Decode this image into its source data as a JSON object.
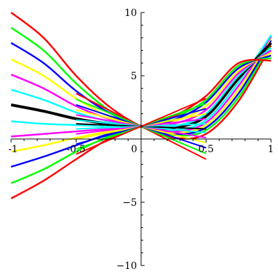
{
  "chart_data": {
    "type": "line",
    "title": "",
    "xlabel": "",
    "ylabel": "",
    "xlim": [
      -1,
      1
    ],
    "ylim": [
      -10,
      10
    ],
    "grid": false,
    "legend": "none",
    "x_ticks": [
      {
        "value": -1,
        "label": "-1"
      },
      {
        "value": -0.5,
        "label": "-0.5"
      },
      {
        "value": 0,
        "label": "0"
      },
      {
        "value": 0.5,
        "label": "0.5"
      },
      {
        "value": 1,
        "label": "1"
      }
    ],
    "y_ticks": [
      {
        "value": -10,
        "label": "−10"
      },
      {
        "value": -5,
        "label": "−5"
      },
      {
        "value": 5,
        "label": "5"
      },
      {
        "value": 10,
        "label": "10"
      }
    ],
    "curve_family": {
      "description_note": "",
      "x": [
        -1,
        -0.75,
        -0.5,
        -0.25,
        0,
        0.25,
        0.5,
        0.75,
        1
      ],
      "series": [
        {
          "color": "#ff0000",
          "values": [
            10.0,
            8.0,
            5.0,
            2.6,
            1.0,
            0.1,
            0.4,
            3.0,
            7.4
          ]
        },
        {
          "color": "#00ff00",
          "values": [
            8.8,
            7.0,
            4.4,
            2.3,
            1.0,
            0.3,
            0.7,
            3.3,
            7.6
          ]
        },
        {
          "color": "#0000ff",
          "values": [
            7.6,
            6.0,
            3.8,
            2.1,
            1.0,
            0.4,
            0.9,
            3.6,
            7.8
          ]
        },
        {
          "color": "#ffff00",
          "values": [
            6.3,
            5.0,
            3.2,
            1.8,
            1.0,
            0.5,
            1.1,
            3.9,
            8.0
          ]
        },
        {
          "color": "#ff00ff",
          "values": [
            5.1,
            4.0,
            2.6,
            1.6,
            1.0,
            0.6,
            1.3,
            4.2,
            8.1
          ]
        },
        {
          "color": "#00ffff",
          "values": [
            3.9,
            3.1,
            2.1,
            1.4,
            1.0,
            0.7,
            1.5,
            4.5,
            8.2
          ]
        },
        {
          "color": "#000000",
          "values": [
            2.7,
            2.2,
            1.6,
            1.2,
            1.0,
            0.9,
            1.8,
            4.8,
            7.6
          ],
          "bold": true
        },
        {
          "color": "#00ffff",
          "values": [
            1.4,
            1.2,
            1.1,
            1.0,
            1.0,
            1.0,
            2.0,
            5.0,
            7.2
          ]
        },
        {
          "color": "#ff00ff",
          "values": [
            0.2,
            0.4,
            0.6,
            0.8,
            1.0,
            1.2,
            2.3,
            5.2,
            7.0
          ]
        },
        {
          "color": "#ffff00",
          "values": [
            -1.0,
            -0.5,
            0.1,
            0.6,
            1.0,
            1.4,
            2.6,
            5.4,
            6.8
          ]
        },
        {
          "color": "#0000ff",
          "values": [
            -2.2,
            -1.4,
            -0.5,
            0.4,
            1.0,
            1.5,
            2.9,
            5.6,
            6.6
          ]
        },
        {
          "color": "#00ff00",
          "values": [
            -3.5,
            -2.4,
            -1.0,
            0.2,
            1.0,
            1.7,
            3.1,
            5.8,
            6.4
          ]
        },
        {
          "color": "#ff0000",
          "values": [
            -4.7,
            -3.3,
            -1.6,
            0.0,
            1.0,
            1.8,
            3.4,
            6.0,
            6.2
          ]
        }
      ]
    },
    "tangent_segments": {
      "x_range": [
        -0.5,
        0.5
      ],
      "center": [
        0,
        1
      ],
      "slopes": [
        {
          "color": "#ff0000",
          "slope": -5.2
        },
        {
          "color": "#00ff00",
          "slope": -4.3
        },
        {
          "color": "#0000ff",
          "slope": -3.4
        },
        {
          "color": "#ffff00",
          "slope": -2.6
        },
        {
          "color": "#ff00ff",
          "slope": -1.8
        },
        {
          "color": "#00ffff",
          "slope": -1.0
        },
        {
          "color": "#000000",
          "slope": -0.4
        },
        {
          "color": "#00ffff",
          "slope": 0.4
        },
        {
          "color": "#ff00ff",
          "slope": 1.2
        },
        {
          "color": "#ffff00",
          "slope": 2.0
        },
        {
          "color": "#0000ff",
          "slope": 2.8
        },
        {
          "color": "#00ff00",
          "slope": 3.6
        },
        {
          "color": "#ff0000",
          "slope": 4.4
        }
      ]
    }
  }
}
